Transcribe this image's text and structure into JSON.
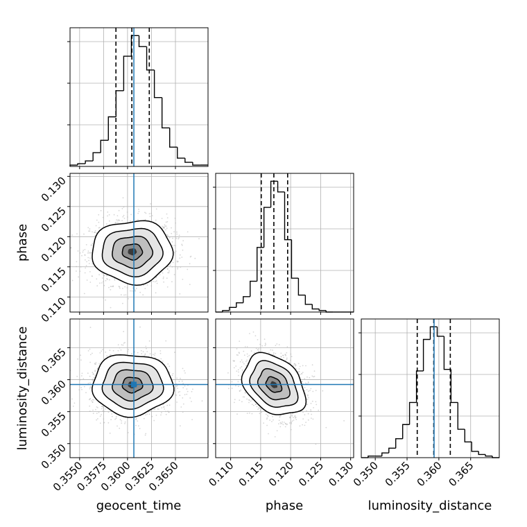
{
  "chart_data": {
    "type": "corner",
    "parameters": [
      {
        "name": "geocent_time",
        "range": [
          0.354,
          0.3684
        ],
        "ticks": [
          0.355,
          0.3575,
          0.36,
          0.3625,
          0.365
        ],
        "tick_labels": [
          "0.3550",
          "0.3575",
          "0.3600",
          "0.3625",
          "0.3650"
        ],
        "truth": 0.36066,
        "quantile_lines": [
          0.35879,
          0.36045,
          0.36227
        ],
        "histogram": {
          "bin_edges": [
            0.354,
            0.3548,
            0.3556,
            0.3564,
            0.3572,
            0.358,
            0.3588,
            0.3596,
            0.3604,
            0.3612,
            0.362,
            0.3628,
            0.3636,
            0.3644,
            0.3652,
            0.366,
            0.3668,
            0.3676,
            0.3684
          ],
          "counts": [
            1,
            2,
            4,
            10,
            19,
            36,
            55,
            80,
            95,
            87,
            70,
            50,
            28,
            14,
            6,
            3,
            1,
            1
          ]
        }
      },
      {
        "name": "phase",
        "range": [
          0.1075,
          0.1305
        ],
        "ticks": [
          0.11,
          0.115,
          0.12,
          0.125,
          0.13
        ],
        "tick_labels": [
          "0.110",
          "0.115",
          "0.120",
          "0.125",
          "0.130"
        ],
        "truth": null,
        "quantile_lines": [
          0.1151,
          0.1172,
          0.1195
        ],
        "histogram": {
          "bin_edges": [
            0.1075,
            0.10865,
            0.1098,
            0.11095,
            0.1121,
            0.11325,
            0.1144,
            0.11555,
            0.1167,
            0.11785,
            0.119,
            0.12015,
            0.1213,
            0.12245,
            0.1236,
            0.12475,
            0.1259,
            0.12705,
            0.1282,
            0.12935,
            0.1305
          ],
          "counts": [
            0,
            1,
            3,
            6,
            10,
            20,
            42,
            68,
            85,
            78,
            47,
            22,
            11,
            5,
            2,
            1,
            0,
            0,
            0,
            0
          ]
        }
      },
      {
        "name": "luminosity_distance",
        "range": [
          0.3478,
          0.3695
        ],
        "ticks": [
          0.35,
          0.355,
          0.36,
          0.365
        ],
        "tick_labels": [
          "0.350",
          "0.355",
          "0.360",
          "0.365"
        ],
        "truth": 0.35925,
        "quantile_lines": [
          0.3566,
          0.3592,
          0.3618
        ],
        "histogram": {
          "bin_edges": [
            0.3478,
            0.34888,
            0.34997,
            0.35105,
            0.35214,
            0.35322,
            0.35431,
            0.35539,
            0.35648,
            0.35757,
            0.35865,
            0.35974,
            0.36082,
            0.36191,
            0.36299,
            0.36408,
            0.36516,
            0.36625,
            0.36733,
            0.36842,
            0.3695
          ],
          "counts": [
            0,
            1,
            1,
            3,
            6,
            12,
            21,
            35,
            55,
            75,
            83,
            77,
            56,
            35,
            18,
            10,
            4,
            2,
            1,
            0
          ]
        }
      }
    ],
    "joint_panels": [
      {
        "row": 1,
        "col": 0,
        "center": [
          0.3605,
          0.1175
        ],
        "spread": [
          0.0021,
          0.0026
        ],
        "correlation": 0.0,
        "truth_x": 0.36066,
        "truth_y": null
      },
      {
        "row": 2,
        "col": 0,
        "center": [
          0.3605,
          0.3592
        ],
        "spread": [
          0.0021,
          0.0024
        ],
        "correlation": 0.0,
        "truth_x": 0.36066,
        "truth_y": 0.35925
      },
      {
        "row": 2,
        "col": 1,
        "center": [
          0.1172,
          0.3592
        ],
        "spread": [
          0.0026,
          0.0024
        ],
        "correlation": -0.32,
        "truth_x": null,
        "truth_y": 0.35925
      }
    ],
    "contour_levels_sigma": [
      0.5,
      1.0,
      1.5,
      2.0
    ],
    "colors": {
      "histogram": "#000000",
      "truth": "#1f77b4",
      "scatter": "#b4b4b4",
      "grid": "#b0b0b0"
    },
    "grid": true,
    "legend": "none"
  }
}
